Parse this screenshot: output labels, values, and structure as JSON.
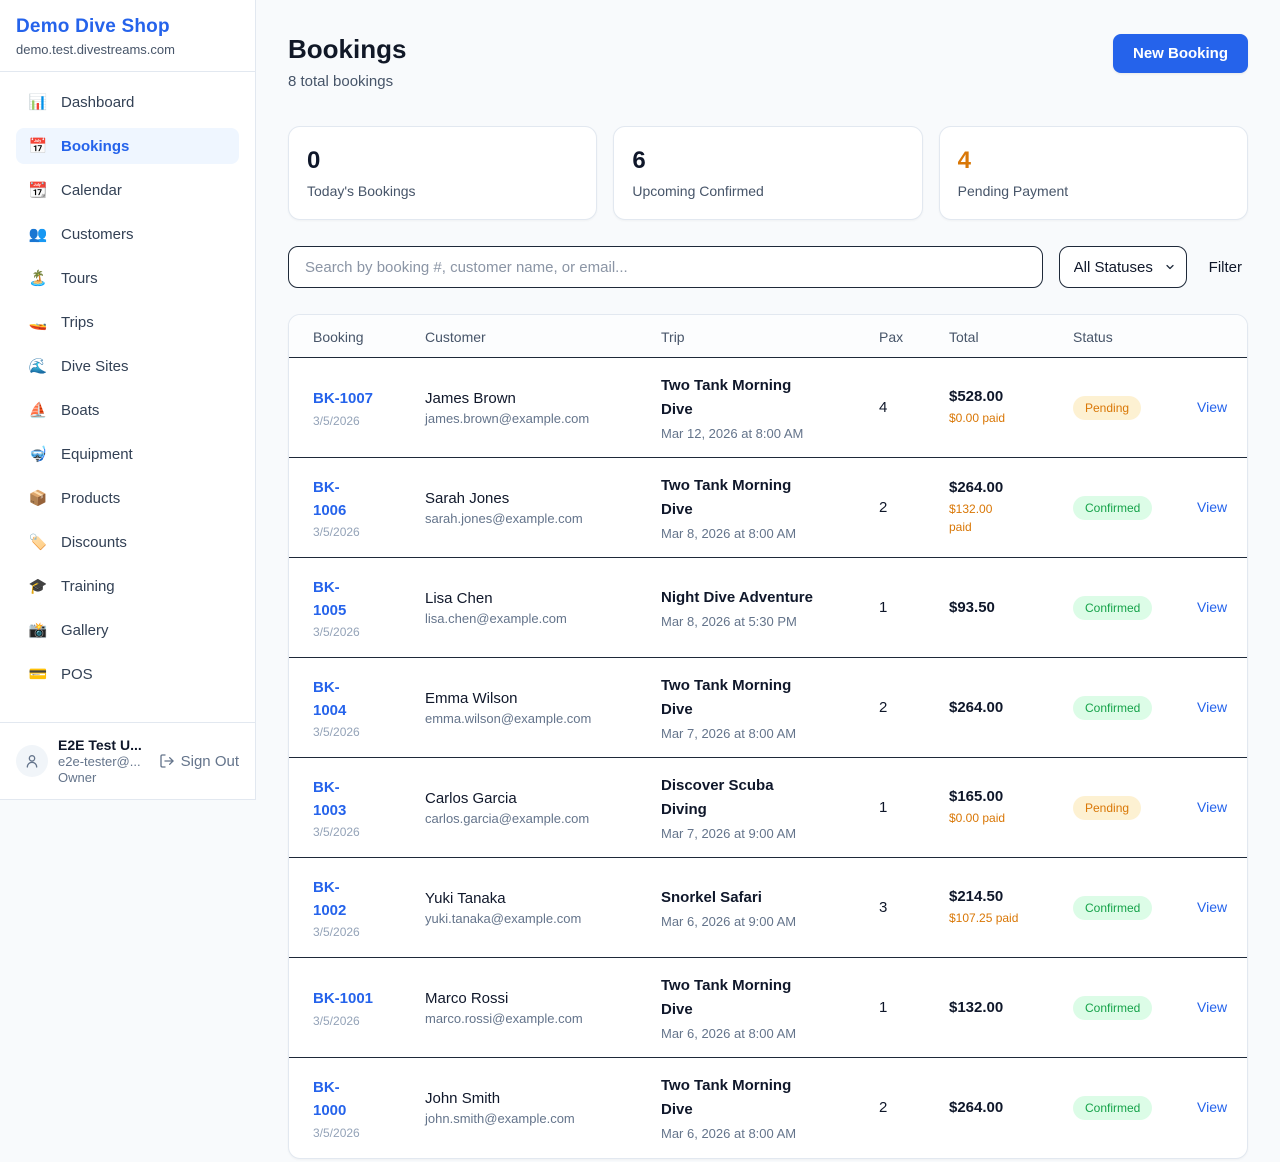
{
  "colors": {
    "accent_blue": "#2563eb",
    "pending_text": "#d97706",
    "pending_bg": "#fdf1d2",
    "confirmed_text": "#16a34a",
    "confirmed_bg": "#dcfce7",
    "page_bg": "#f8fafc",
    "dark_border": "#1e2939"
  },
  "sidebar": {
    "brand": {
      "name": "Demo Dive Shop",
      "domain": "demo.test.divestreams.com"
    },
    "items": [
      {
        "label": "Dashboard",
        "icon": "bar-chart-icon",
        "glyph": "📊",
        "active": false
      },
      {
        "label": "Bookings",
        "icon": "calendar-icon",
        "glyph": "📅",
        "active": true
      },
      {
        "label": "Calendar",
        "icon": "tear-off-calendar-icon",
        "glyph": "📆",
        "active": false
      },
      {
        "label": "Customers",
        "icon": "people-icon",
        "glyph": "👥",
        "active": false
      },
      {
        "label": "Tours",
        "icon": "island-icon",
        "glyph": "🏝️",
        "active": false
      },
      {
        "label": "Trips",
        "icon": "speedboat-icon",
        "glyph": "🚤",
        "active": false
      },
      {
        "label": "Dive Sites",
        "icon": "wave-icon",
        "glyph": "🌊",
        "active": false
      },
      {
        "label": "Boats",
        "icon": "sailboat-icon",
        "glyph": "⛵",
        "active": false
      },
      {
        "label": "Equipment",
        "icon": "diving-mask-icon",
        "glyph": "🤿",
        "active": false
      },
      {
        "label": "Products",
        "icon": "package-icon",
        "glyph": "📦",
        "active": false
      },
      {
        "label": "Discounts",
        "icon": "label-tag-icon",
        "glyph": "🏷️",
        "active": false
      },
      {
        "label": "Training",
        "icon": "graduation-cap-icon",
        "glyph": "🎓",
        "active": false
      },
      {
        "label": "Gallery",
        "icon": "camera-icon",
        "glyph": "📸",
        "active": false
      },
      {
        "label": "POS",
        "icon": "credit-card-icon",
        "glyph": "💳",
        "active": false
      }
    ],
    "user": {
      "name": "E2E Test U...",
      "email": "e2e-tester@...",
      "role": "Owner",
      "sign_out_label": "Sign Out"
    }
  },
  "header": {
    "title": "Bookings",
    "subtitle": "8 total bookings",
    "new_booking_label": "New Booking"
  },
  "stats": [
    {
      "value": "0",
      "label": "Today's Bookings",
      "accent": false
    },
    {
      "value": "6",
      "label": "Upcoming Confirmed",
      "accent": false
    },
    {
      "value": "4",
      "label": "Pending Payment",
      "accent": true
    }
  ],
  "controls": {
    "search_placeholder": "Search by booking #, customer name, or email...",
    "status_filter_value": "All Statuses",
    "filter_label": "Filter"
  },
  "table": {
    "columns": [
      "Booking",
      "Customer",
      "Trip",
      "Pax",
      "Total",
      "Status",
      ""
    ],
    "rows": [
      {
        "booking_no": "BK-1007",
        "booking_date": "3/5/2026",
        "customer_name": "James Brown",
        "customer_email": "james.brown@example.com",
        "trip_name": "Two Tank Morning\nDive",
        "trip_datetime": "Mar 12, 2026 at 8:00 AM",
        "pax": "4",
        "total": "$528.00",
        "paid": "$0.00 paid",
        "status": "Pending",
        "action": "View"
      },
      {
        "booking_no": "BK-\n1006",
        "booking_date": "3/5/2026",
        "customer_name": "Sarah Jones",
        "customer_email": "sarah.jones@example.com",
        "trip_name": "Two Tank Morning\nDive",
        "trip_datetime": "Mar 8, 2026 at 8:00 AM",
        "pax": "2",
        "total": "$264.00",
        "paid": "$132.00\npaid",
        "status": "Confirmed",
        "action": "View"
      },
      {
        "booking_no": "BK-\n1005",
        "booking_date": "3/5/2026",
        "customer_name": "Lisa Chen",
        "customer_email": "lisa.chen@example.com",
        "trip_name": "Night Dive Adventure",
        "trip_datetime": "Mar 8, 2026 at 5:30 PM",
        "pax": "1",
        "total": "$93.50",
        "paid": "",
        "status": "Confirmed",
        "action": "View"
      },
      {
        "booking_no": "BK-\n1004",
        "booking_date": "3/5/2026",
        "customer_name": "Emma Wilson",
        "customer_email": "emma.wilson@example.com",
        "trip_name": "Two Tank Morning\nDive",
        "trip_datetime": "Mar 7, 2026 at 8:00 AM",
        "pax": "2",
        "total": "$264.00",
        "paid": "",
        "status": "Confirmed",
        "action": "View"
      },
      {
        "booking_no": "BK-\n1003",
        "booking_date": "3/5/2026",
        "customer_name": "Carlos Garcia",
        "customer_email": "carlos.garcia@example.com",
        "trip_name": "Discover Scuba\nDiving",
        "trip_datetime": "Mar 7, 2026 at 9:00 AM",
        "pax": "1",
        "total": "$165.00",
        "paid": "$0.00 paid",
        "status": "Pending",
        "action": "View"
      },
      {
        "booking_no": "BK-\n1002",
        "booking_date": "3/5/2026",
        "customer_name": "Yuki Tanaka",
        "customer_email": "yuki.tanaka@example.com",
        "trip_name": "Snorkel Safari",
        "trip_datetime": "Mar 6, 2026 at 9:00 AM",
        "pax": "3",
        "total": "$214.50",
        "paid": "$107.25 paid",
        "status": "Confirmed",
        "action": "View"
      },
      {
        "booking_no": "BK-1001",
        "booking_date": "3/5/2026",
        "customer_name": "Marco Rossi",
        "customer_email": "marco.rossi@example.com",
        "trip_name": "Two Tank Morning\nDive",
        "trip_datetime": "Mar 6, 2026 at 8:00 AM",
        "pax": "1",
        "total": "$132.00",
        "paid": "",
        "status": "Confirmed",
        "action": "View"
      },
      {
        "booking_no": "BK-\n1000",
        "booking_date": "3/5/2026",
        "customer_name": "John Smith",
        "customer_email": "john.smith@example.com",
        "trip_name": "Two Tank Morning\nDive",
        "trip_datetime": "Mar 6, 2026 at 8:00 AM",
        "pax": "2",
        "total": "$264.00",
        "paid": "",
        "status": "Confirmed",
        "action": "View"
      }
    ]
  }
}
